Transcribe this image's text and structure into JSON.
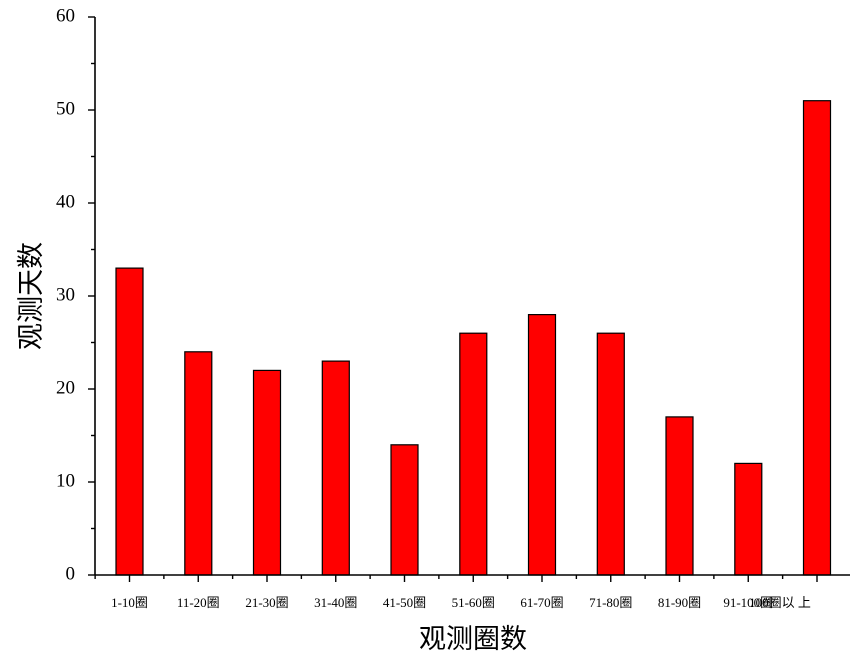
{
  "chart_data": {
    "type": "bar",
    "title": "",
    "xlabel": "观测圈数",
    "ylabel": "观测天数",
    "categories": [
      "1-10圈",
      "11-20圈",
      "21-30圈",
      "31-40圈",
      "41-50圈",
      "51-60圈",
      "61-70圈",
      "71-80圈",
      "81-90圈",
      "91-100圈",
      "100圈以 上"
    ],
    "values": [
      33,
      24,
      22,
      23,
      14,
      26,
      28,
      26,
      17,
      12,
      51
    ],
    "ylim": [
      0,
      60
    ],
    "yticks": [
      0,
      10,
      20,
      30,
      40,
      50,
      60
    ],
    "grid": false,
    "bar_color": "#ff0000",
    "edge_color": "#000000"
  }
}
